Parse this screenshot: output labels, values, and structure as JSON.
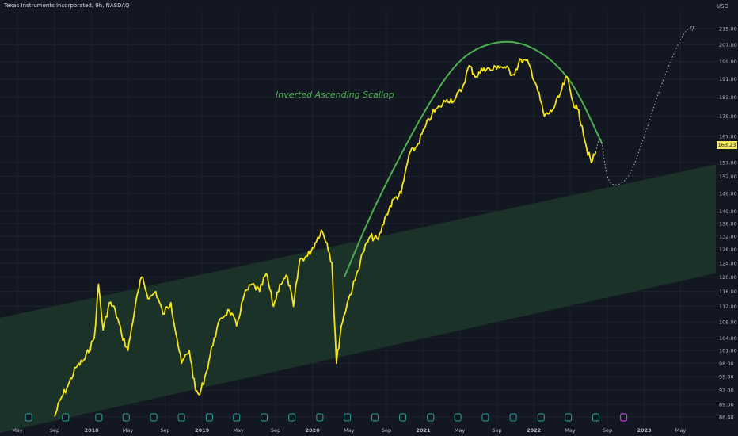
{
  "header": {
    "title": "Texas Instruments Incorporated, 9h, NASDAQ",
    "currency": "USD"
  },
  "current_price": "163.23",
  "annotation": "Inverted Ascending Scallop",
  "colors": {
    "background": "#131722",
    "price_line": "#f5e61a",
    "arc": "#4caf50",
    "channel_fill": "#1e3a2b",
    "projection": "#b2b5be",
    "gridline": "#1e222d",
    "earnings_marker": "#26a69a",
    "earnings_marker_upcoming": "#e040fb"
  },
  "chart_data": {
    "type": "line",
    "title": "Texas Instruments Incorporated, 9h, NASDAQ",
    "xlabel": "",
    "ylabel": "USD",
    "y_scale": "log",
    "ylim": [
      86.0,
      222.0
    ],
    "yticks": [
      "215.00",
      "207.00",
      "199.00",
      "191.00",
      "183.00",
      "175.00",
      "167.00",
      "157.00",
      "152.00",
      "146.00",
      "140.00",
      "136.00",
      "132.00",
      "128.00",
      "124.00",
      "120.00",
      "116.00",
      "112.00",
      "108.00",
      "104.00",
      "101.00",
      "98.00",
      "95.00",
      "92.00",
      "89.00",
      "86.40"
    ],
    "xticks": [
      "May",
      "Sep",
      "2018",
      "May",
      "Sep",
      "2019",
      "May",
      "Sep",
      "2020",
      "May",
      "Sep",
      "2021",
      "May",
      "Sep",
      "2022",
      "May",
      "Sep",
      "2023",
      "May"
    ],
    "x_tick_dates": [
      "2017-05",
      "2017-09",
      "2018-01",
      "2018-05",
      "2018-09",
      "2019-01",
      "2019-05",
      "2019-09",
      "2020-01",
      "2020-05",
      "2020-09",
      "2021-01",
      "2021-05",
      "2021-09",
      "2022-01",
      "2022-05",
      "2022-09",
      "2023-01",
      "2023-05"
    ],
    "series": [
      {
        "x": [
          "2017-09-01",
          "2017-09-20",
          "2017-10-15",
          "2017-11-10",
          "2017-12-10",
          "2018-01-10",
          "2018-01-24",
          "2018-02-08",
          "2018-03-01",
          "2018-03-20",
          "2018-04-10",
          "2018-05-01",
          "2018-05-25",
          "2018-06-15",
          "2018-07-10",
          "2018-08-01",
          "2018-08-25",
          "2018-09-20",
          "2018-10-10",
          "2018-10-25",
          "2018-11-20",
          "2018-12-10",
          "2018-12-24",
          "2019-01-15",
          "2019-02-10",
          "2019-03-05",
          "2019-04-01",
          "2019-04-25",
          "2019-05-20",
          "2019-06-15",
          "2019-07-10",
          "2019-08-01",
          "2019-08-25",
          "2019-09-15",
          "2019-10-10",
          "2019-10-30",
          "2019-11-20",
          "2019-12-15",
          "2020-01-10",
          "2020-01-30",
          "2020-02-18",
          "2020-03-05",
          "2020-03-20",
          "2020-04-05",
          "2020-04-25",
          "2020-05-20",
          "2020-06-15",
          "2020-07-10",
          "2020-08-05",
          "2020-09-01",
          "2020-09-25",
          "2020-10-20",
          "2020-11-15",
          "2020-12-10",
          "2021-01-05",
          "2021-01-30",
          "2021-02-25",
          "2021-03-20",
          "2021-04-15",
          "2021-05-10",
          "2021-06-01",
          "2021-06-25",
          "2021-07-20",
          "2021-08-15",
          "2021-09-05",
          "2021-09-30",
          "2021-10-25",
          "2021-11-20",
          "2021-12-15",
          "2022-01-10",
          "2022-02-05",
          "2022-03-01",
          "2022-03-25",
          "2022-04-20",
          "2022-05-10",
          "2022-05-25",
          "2022-06-10",
          "2022-06-25",
          "2022-07-10",
          "2022-07-25"
        ],
        "values": [
          86.5,
          90,
          93,
          97,
          99,
          104,
          118,
          106,
          113,
          111,
          105,
          101,
          112,
          120,
          114,
          116,
          110,
          113,
          104,
          98,
          101,
          92,
          91,
          96,
          104,
          109,
          111,
          107,
          115,
          118,
          116,
          121,
          112,
          118,
          120,
          112,
          125,
          126,
          130,
          134,
          130,
          124,
          98,
          107,
          113,
          119,
          127,
          132,
          131,
          139,
          144,
          146,
          160,
          163,
          170,
          176,
          179,
          182,
          182,
          187,
          197,
          192,
          196,
          195,
          197,
          196,
          193,
          200,
          198,
          188,
          175,
          177,
          183,
          192,
          181,
          178,
          171,
          162,
          157,
          161
        ]
      }
    ],
    "projection": {
      "style": "dotted",
      "x": [
        "2022-07-25",
        "2022-08-10",
        "2022-09-01",
        "2022-10-01",
        "2022-11-15",
        "2023-01-01",
        "2023-02-15",
        "2023-04-01",
        "2023-05-15",
        "2023-06-15"
      ],
      "values": [
        161,
        166,
        152,
        149,
        153,
        167,
        184,
        200,
        213,
        216
      ]
    },
    "arc": {
      "x": [
        "2020-04-15",
        "2020-08-01",
        "2021-01-01",
        "2021-05-01",
        "2021-09-01",
        "2022-01-01",
        "2022-05-01",
        "2022-08-15"
      ],
      "values": [
        120,
        143,
        176,
        199,
        208,
        205,
        190,
        164
      ]
    },
    "channel": {
      "upper": {
        "x": [
          "2017-05-01",
          "2023-07-01"
        ],
        "values": [
          110,
          155
        ]
      },
      "lower": {
        "x": [
          "2017-05-01",
          "2023-07-01"
        ],
        "values": [
          84,
          120
        ]
      }
    },
    "earnings_markers": [
      "2017-06-07",
      "2017-10-07",
      "2018-01-25",
      "2018-04-25",
      "2018-07-25",
      "2018-10-25",
      "2019-01-25",
      "2019-04-25",
      "2019-07-25",
      "2019-10-25",
      "2020-01-25",
      "2020-04-25",
      "2020-07-25",
      "2020-10-25",
      "2021-01-25",
      "2021-04-25",
      "2021-07-25",
      "2021-10-25",
      "2022-01-25",
      "2022-04-25",
      "2022-07-25",
      "2022-10-25"
    ]
  }
}
